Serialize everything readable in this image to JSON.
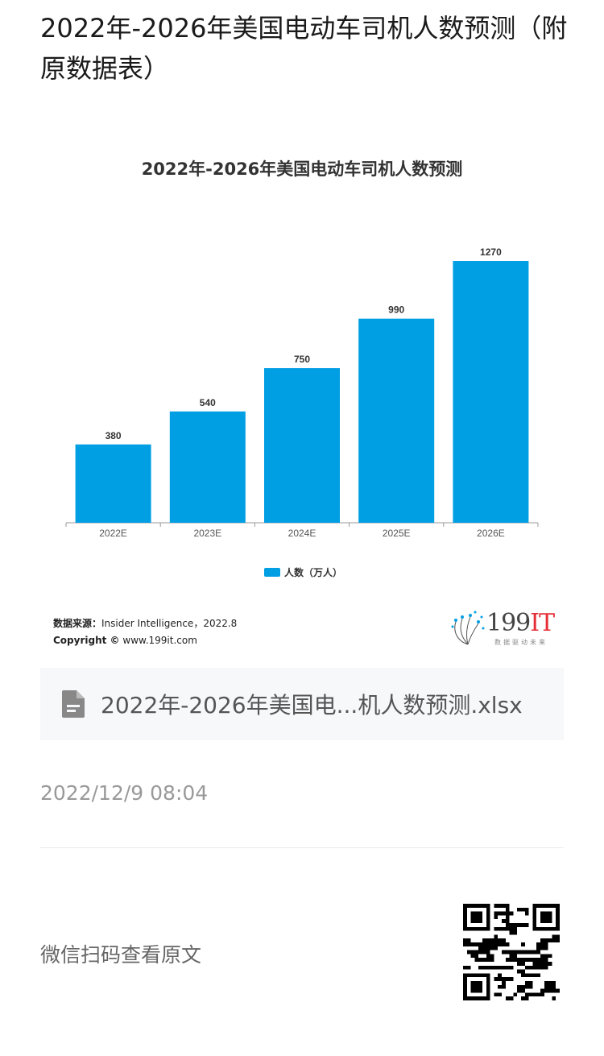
{
  "page": {
    "title": "2022年-2026年美国电动车司机人数预测（附原数据表）",
    "file_name": "2022年-2026年美国电...机人数预测.xlsx",
    "timestamp": "2022/12/9 08:04",
    "qr_label": "微信扫码查看原文"
  },
  "colors": {
    "bar": "#009ee3",
    "axis": "#999999",
    "label": "#333333"
  },
  "icons": {
    "file": "file-document-icon",
    "logo": "199it-logo",
    "qr": "qr-code"
  },
  "source": {
    "label": "数据来源：",
    "text": "Insider Intelligence，2022.8",
    "copyright_label": "Copyright ©",
    "copyright_text": "www.199it.com"
  },
  "logo": {
    "number": "199",
    "suffix": "IT",
    "tagline": "数据驱动未来"
  },
  "chart_data": {
    "type": "bar",
    "title": "2022年-2026年美国电动车司机人数预测",
    "categories": [
      "2022E",
      "2023E",
      "2024E",
      "2025E",
      "2026E"
    ],
    "series": [
      {
        "name": "人数（万人）",
        "values": [
          380,
          540,
          750,
          990,
          1270
        ]
      }
    ],
    "ylim": [
      0,
      1270
    ],
    "grid": false,
    "legend": "bottom",
    "data_labels": true
  }
}
